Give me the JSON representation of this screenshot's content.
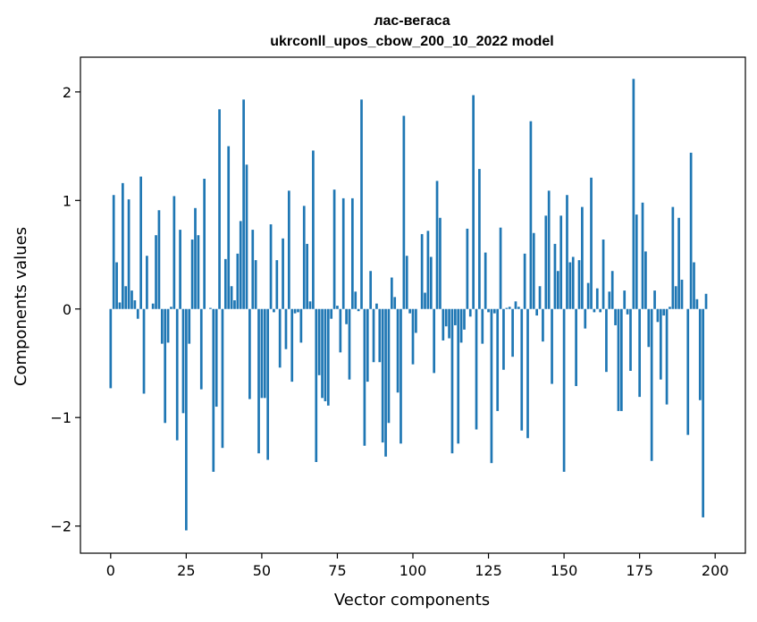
{
  "chart_data": {
    "type": "bar",
    "title_line1": "лас-вегаса",
    "title_line2": "ukrconll_upos_cbow_200_10_2022 model",
    "xlabel": "Vector components",
    "ylabel": "Components values",
    "xlim": [
      -10,
      210
    ],
    "ylim": [
      -2.25,
      2.32
    ],
    "x_ticks": [
      0,
      25,
      50,
      75,
      100,
      125,
      150,
      175,
      200
    ],
    "y_ticks": [
      -2,
      -1,
      0,
      1,
      2
    ],
    "y_tick_labels": [
      "−2",
      "−1",
      "0",
      "1",
      "2"
    ],
    "grid": false,
    "bar_color": "#1f77b4",
    "values": [
      -0.73,
      1.05,
      0.43,
      0.06,
      1.16,
      0.21,
      1.01,
      0.17,
      0.08,
      -0.09,
      1.22,
      -0.78,
      0.49,
      0.0,
      0.05,
      0.68,
      0.91,
      -0.32,
      -1.05,
      -0.31,
      0.02,
      1.04,
      -1.21,
      0.73,
      -0.96,
      -2.04,
      -0.32,
      0.64,
      0.93,
      0.68,
      -0.74,
      1.2,
      0.0,
      0.01,
      -1.5,
      -0.9,
      1.84,
      -1.28,
      0.46,
      1.5,
      0.21,
      0.08,
      0.51,
      0.81,
      1.93,
      1.33,
      -0.83,
      0.73,
      0.45,
      -1.33,
      -0.82,
      -0.82,
      -1.39,
      0.78,
      -0.03,
      0.45,
      -0.54,
      0.65,
      -0.37,
      1.09,
      -0.67,
      -0.04,
      -0.03,
      -0.31,
      0.95,
      0.6,
      0.07,
      1.46,
      -1.41,
      -0.61,
      -0.82,
      -0.85,
      -0.89,
      -0.09,
      1.1,
      0.03,
      -0.4,
      1.02,
      -0.14,
      -0.65,
      1.02,
      0.16,
      -0.02,
      1.93,
      -1.26,
      -0.67,
      0.35,
      -0.49,
      0.05,
      -0.49,
      -1.23,
      -1.36,
      -1.05,
      0.29,
      0.11,
      -0.77,
      -1.24,
      1.78,
      0.49,
      -0.04,
      -0.51,
      -0.22,
      0.0,
      0.69,
      0.15,
      0.72,
      0.48,
      -0.59,
      1.18,
      0.84,
      -0.29,
      -0.16,
      -0.27,
      -1.33,
      -0.15,
      -1.24,
      -0.31,
      -0.19,
      0.74,
      -0.07,
      1.97,
      -1.11,
      1.29,
      -0.32,
      0.52,
      -0.03,
      -1.42,
      -0.04,
      -0.94,
      0.75,
      -0.56,
      0.01,
      0.02,
      -0.44,
      0.07,
      0.02,
      -1.12,
      0.51,
      -1.19,
      1.73,
      0.7,
      -0.06,
      0.21,
      -0.3,
      0.86,
      1.09,
      -0.69,
      0.6,
      0.35,
      0.86,
      -1.5,
      1.05,
      0.43,
      0.48,
      -0.71,
      0.45,
      0.94,
      -0.18,
      0.24,
      1.21,
      -0.03,
      0.19,
      -0.03,
      0.64,
      -0.58,
      0.16,
      0.35,
      -0.15,
      -0.94,
      -0.94,
      0.17,
      -0.05,
      -0.57,
      2.12,
      0.87,
      -0.81,
      0.98,
      0.53,
      -0.35,
      -1.4,
      0.17,
      -0.12,
      -0.65,
      -0.06,
      -0.88,
      0.02,
      0.94,
      0.21,
      0.84,
      0.27,
      0.0,
      -1.16,
      1.44,
      0.43,
      0.09,
      -0.84,
      -1.92,
      0.14
    ]
  }
}
